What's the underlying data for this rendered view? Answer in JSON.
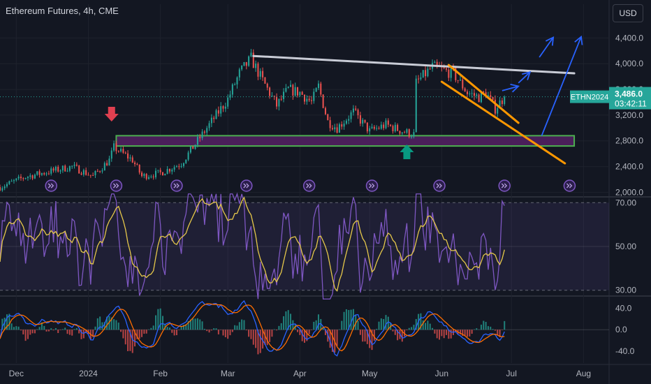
{
  "header": {
    "title": "Ethereum Futures, 4h, CME"
  },
  "currency_button": "USD",
  "colors": {
    "background": "#131722",
    "up": "#26a69a",
    "down": "#ef5350",
    "rsi": "#7e57c2",
    "rsi_ma": "#e6c84a",
    "macd": "#2962ff",
    "signal": "#ff6d00",
    "resistance": "#c9ccd6",
    "channel": "#ff9800",
    "zone": "#4caf50",
    "zone_fill": "#4a1f5a",
    "projection": "#2962ff",
    "marker_down": "#e04050",
    "marker_up": "#089981"
  },
  "price_tag": {
    "symbol": "ETHN2024",
    "price": "3,486.0",
    "countdown": "03:42:11"
  },
  "chart_data": [
    {
      "type": "candlestick",
      "title": "Ethereum Futures, 4h, CME",
      "y_ticks": [
        "4,400.0",
        "4,000.0",
        "3,600.0",
        "3,200.0",
        "2,800.0",
        "2,400.0",
        "2,000.0"
      ],
      "y_values": [
        4400,
        4000,
        3600,
        3200,
        2800,
        2400,
        2000
      ],
      "ylim": [
        1950,
        4600
      ],
      "x_ticks": [
        "Dec",
        "2024",
        "Feb",
        "Mar",
        "Apr",
        "May",
        "Jun",
        "Jul",
        "Aug"
      ],
      "x_tick_dates": [
        "2023-12-01",
        "2024-01-01",
        "2024-02-01",
        "2024-03-01",
        "2024-04-01",
        "2024-05-01",
        "2024-06-01",
        "2024-07-01",
        "2024-08-01"
      ],
      "xlim": [
        "2023-11-24",
        "2024-08-12"
      ],
      "last_price": 3486.0,
      "price_path": [
        [
          "2023-11-24",
          2080
        ],
        [
          "2023-12-05",
          2240
        ],
        [
          "2023-12-15",
          2320
        ],
        [
          "2023-12-25",
          2400
        ],
        [
          "2024-01-03",
          2250
        ],
        [
          "2024-01-10",
          2500
        ],
        [
          "2024-01-12",
          2700
        ],
        [
          "2024-01-20",
          2500
        ],
        [
          "2024-01-24",
          2250
        ],
        [
          "2024-02-01",
          2300
        ],
        [
          "2024-02-10",
          2450
        ],
        [
          "2024-02-20",
          2950
        ],
        [
          "2024-03-01",
          3450
        ],
        [
          "2024-03-06",
          3850
        ],
        [
          "2024-03-11",
          4080
        ],
        [
          "2024-03-15",
          3800
        ],
        [
          "2024-03-22",
          3350
        ],
        [
          "2024-03-27",
          3600
        ],
        [
          "2024-04-01",
          3550
        ],
        [
          "2024-04-06",
          3400
        ],
        [
          "2024-04-09",
          3650
        ],
        [
          "2024-04-13",
          3100
        ],
        [
          "2024-04-17",
          3000
        ],
        [
          "2024-04-24",
          3250
        ],
        [
          "2024-05-01",
          2950
        ],
        [
          "2024-05-08",
          3050
        ],
        [
          "2024-05-15",
          2950
        ],
        [
          "2024-05-20",
          2900
        ],
        [
          "2024-05-21",
          3700
        ],
        [
          "2024-05-28",
          3950
        ],
        [
          "2024-06-06",
          3850
        ],
        [
          "2024-06-12",
          3550
        ],
        [
          "2024-06-17",
          3480
        ],
        [
          "2024-06-20",
          3550
        ],
        [
          "2024-06-24",
          3300
        ],
        [
          "2024-06-28",
          3486
        ]
      ],
      "support_zone": [
        2720,
        2880
      ],
      "resistance_line": [
        [
          "2024-03-12",
          4120
        ],
        [
          "2024-07-28",
          3850
        ]
      ],
      "channel_upper": [
        [
          "2024-06-04",
          3980
        ],
        [
          "2024-07-04",
          3080
        ]
      ],
      "channel_lower": [
        [
          "2024-06-01",
          3720
        ],
        [
          "2024-07-24",
          2450
        ]
      ],
      "projections": [
        [
          [
            "2024-06-27",
            3580
          ],
          [
            "2024-07-04",
            3650
          ]
        ],
        [
          [
            "2024-07-04",
            3700
          ],
          [
            "2024-07-09",
            3870
          ]
        ],
        [
          [
            "2024-07-13",
            4100
          ],
          [
            "2024-07-19",
            4410
          ]
        ],
        [
          [
            "2024-07-14",
            2880
          ],
          [
            "2024-07-31",
            4420
          ]
        ]
      ],
      "marker_down_date": "2024-01-11",
      "marker_up_date": "2024-05-17",
      "event_icon_dates": [
        "2023-12-16",
        "2024-01-13",
        "2024-02-08",
        "2024-03-09",
        "2024-04-05",
        "2024-05-02",
        "2024-05-31",
        "2024-06-28",
        "2024-07-26"
      ]
    },
    {
      "type": "line",
      "y_ticks": [
        "70.00",
        "50.00",
        "30.00"
      ],
      "y_values": [
        70,
        50,
        30
      ],
      "ylim": [
        28,
        72
      ],
      "band": [
        30,
        70
      ]
    },
    {
      "type": "bar",
      "y_ticks": [
        "40.0",
        "0.0",
        "-40.0"
      ],
      "y_values": [
        40,
        0,
        -40
      ],
      "ylim": [
        -62,
        60
      ]
    }
  ]
}
